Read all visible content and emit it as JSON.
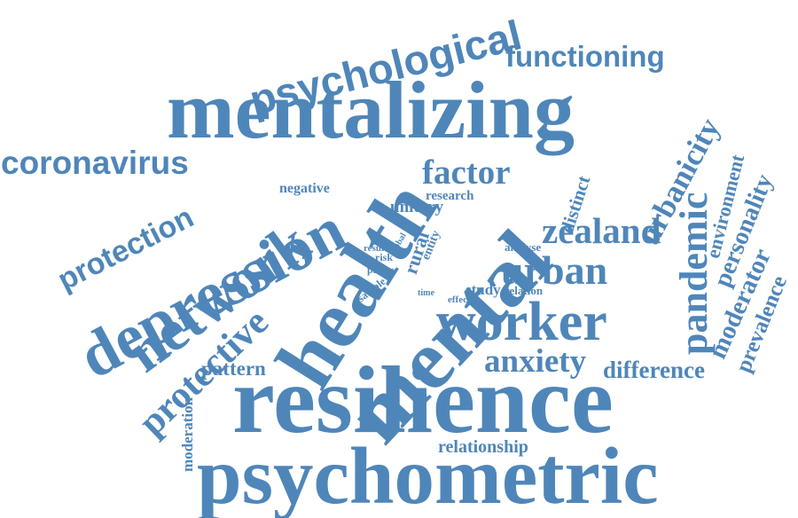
{
  "colors": {
    "word": "#4f86b9",
    "background": "#ffffff"
  },
  "words": [
    {
      "id": "psychometric",
      "text": "psychometric"
    },
    {
      "id": "resilience",
      "text": "resilience"
    },
    {
      "id": "mentalizing",
      "text": "mentalizing"
    },
    {
      "id": "mental",
      "text": "mental"
    },
    {
      "id": "health",
      "text": "health"
    },
    {
      "id": "worker",
      "text": "worker"
    },
    {
      "id": "psychological",
      "text": "psychological"
    },
    {
      "id": "depression",
      "text": "depression"
    },
    {
      "id": "network",
      "text": "network"
    },
    {
      "id": "coronavirus",
      "text": "coronavirus"
    },
    {
      "id": "protective",
      "text": "protective"
    },
    {
      "id": "protection",
      "text": "protection"
    },
    {
      "id": "functioning",
      "text": "functioning"
    },
    {
      "id": "factor",
      "text": "factor"
    },
    {
      "id": "urban",
      "text": "urban"
    },
    {
      "id": "zealand",
      "text": "zealand"
    },
    {
      "id": "pandemic",
      "text": "pandemic"
    },
    {
      "id": "urbanicity",
      "text": "urbanicity"
    },
    {
      "id": "anxiety",
      "text": "anxiety"
    },
    {
      "id": "difference",
      "text": "difference"
    },
    {
      "id": "moderator",
      "text": "moderator"
    },
    {
      "id": "prevalence",
      "text": "prevalence"
    },
    {
      "id": "personality",
      "text": "personality"
    },
    {
      "id": "environment",
      "text": "environment"
    },
    {
      "id": "pattern",
      "text": "pattern"
    },
    {
      "id": "moderation",
      "text": "moderation"
    },
    {
      "id": "relationship",
      "text": "relationship"
    },
    {
      "id": "distinct",
      "text": "distinct"
    },
    {
      "id": "negative",
      "text": "negative"
    },
    {
      "id": "research",
      "text": "research"
    },
    {
      "id": "unitary",
      "text": "unitary"
    },
    {
      "id": "study",
      "text": "study"
    },
    {
      "id": "relation",
      "text": "relation"
    },
    {
      "id": "analyse",
      "text": "analyse"
    },
    {
      "id": "rural",
      "text": "rural"
    },
    {
      "id": "entity",
      "text": "entity"
    },
    {
      "id": "global",
      "text": "global"
    },
    {
      "id": "result",
      "text": "result"
    },
    {
      "id": "risk",
      "text": "risk"
    },
    {
      "id": "paper",
      "text": "paper"
    },
    {
      "id": "sample",
      "text": "sample"
    },
    {
      "id": "time",
      "text": "time"
    },
    {
      "id": "effect",
      "text": "effect"
    }
  ]
}
